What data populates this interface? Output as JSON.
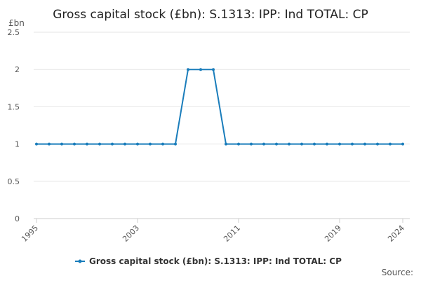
{
  "chart_data": {
    "type": "line",
    "title": "Gross capital stock (£bn): S.1313: IPP: Ind TOTAL: CP",
    "y_label": "£bn",
    "source": "Source:",
    "x": [
      1995,
      1996,
      1997,
      1998,
      1999,
      2000,
      2001,
      2002,
      2003,
      2004,
      2005,
      2006,
      2007,
      2008,
      2009,
      2010,
      2011,
      2012,
      2013,
      2014,
      2015,
      2016,
      2017,
      2018,
      2019,
      2020,
      2021,
      2022,
      2023,
      2024
    ],
    "series": [
      {
        "name": "Gross capital stock (£bn): S.1313: IPP: Ind TOTAL: CP",
        "color": "#1a7dbb",
        "values": [
          1,
          1,
          1,
          1,
          1,
          1,
          1,
          1,
          1,
          1,
          1,
          1,
          2,
          2,
          2,
          1,
          1,
          1,
          1,
          1,
          1,
          1,
          1,
          1,
          1,
          1,
          1,
          1,
          1,
          1
        ]
      }
    ],
    "xlim": [
      1995,
      2024
    ],
    "xticks": [
      1995,
      2003,
      2011,
      2019,
      2024
    ],
    "ylim": [
      0,
      2.5
    ],
    "yticks": [
      0,
      0.5,
      1,
      1.5,
      2,
      2.5
    ],
    "grid": true
  }
}
